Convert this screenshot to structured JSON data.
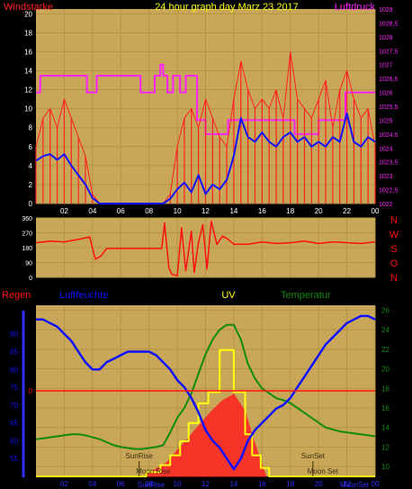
{
  "colors": {
    "panel": "#C8A858",
    "grid": "#B59346",
    "tick": "#FFFFFF",
    "wind": "#FF2020",
    "wind_avg": "#1010FF",
    "pressure": "#FF20FF",
    "direction": "#FF1010",
    "rain": "#FF1010",
    "humidity": "#1010FF",
    "uv": "#FFFF10",
    "temperature": "#108A10",
    "solar_fill": "#FF2020",
    "sun_moon": "#3C2A10",
    "hour_ticks": "#3030FF"
  },
  "chart_data": [
    {
      "type": "line",
      "title": "24 hour graph day   Marz 23 2017",
      "ylabel_left": "Windstarke",
      "ylabel_right": "Luftdruck",
      "x_ticks": [
        "02",
        "04",
        "06",
        "08",
        "10",
        "12",
        "14",
        "16",
        "18",
        "20",
        "22",
        "00"
      ],
      "y_left_ticks": [
        "0",
        "2",
        "4",
        "6",
        "8",
        "10",
        "12",
        "14",
        "16",
        "18",
        "20"
      ],
      "y_right_ticks": [
        "1022",
        "1022,5",
        "1023",
        "1023,5",
        "1024",
        "1024,5",
        "1025",
        "1025,5",
        "1026",
        "1026,5",
        "1027",
        "1027,5",
        "1028",
        "1028,5",
        "1029"
      ],
      "ylim_left": [
        0,
        20.5
      ],
      "ylim_right": [
        1022,
        1029
      ],
      "series": [
        {
          "role": "wind_gust",
          "x": [
            0,
            0.5,
            1,
            1.5,
            2,
            2.5,
            3,
            3.5,
            4,
            4.5,
            5,
            5.5,
            6,
            6.5,
            7,
            7.5,
            8,
            8.5,
            9,
            9.5,
            10,
            10.5,
            11,
            11.5,
            12,
            12.5,
            13,
            13.5,
            14,
            14.5,
            15,
            15.5,
            16,
            16.5,
            17,
            17.5,
            18,
            18.5,
            19,
            19.5,
            20,
            20.5,
            21,
            21.5,
            22,
            22.5,
            23,
            23.5,
            24
          ],
          "values": [
            6,
            9,
            10,
            8,
            11,
            9,
            7,
            5,
            1,
            0,
            0,
            0,
            0,
            0,
            0,
            0,
            0,
            0,
            0,
            1,
            6,
            9,
            10,
            8,
            11,
            9,
            7,
            6,
            11,
            15,
            12,
            10,
            11,
            10,
            12,
            9,
            16,
            11,
            10,
            9,
            11,
            13,
            8,
            12,
            14,
            11,
            9,
            10,
            6
          ]
        },
        {
          "role": "wind_average",
          "x": [
            0,
            0.5,
            1,
            1.5,
            2,
            2.5,
            3,
            3.5,
            4,
            4.5,
            5,
            5.5,
            6,
            6.5,
            7,
            7.5,
            8,
            8.5,
            9,
            9.5,
            10,
            10.5,
            11,
            11.5,
            12,
            12.5,
            13,
            13.5,
            14,
            14.5,
            15,
            15.5,
            16,
            16.5,
            17,
            17.5,
            18,
            18.5,
            19,
            19.5,
            20,
            20.5,
            21,
            21.5,
            22,
            22.5,
            23,
            23.5,
            24
          ],
          "values": [
            4.5,
            5,
            5.2,
            4.6,
            5.2,
            4,
            3,
            2,
            0.6,
            0,
            0,
            0,
            0,
            0,
            0,
            0,
            0,
            0,
            0,
            0.5,
            1.5,
            2.2,
            1.2,
            3,
            1,
            2,
            1.5,
            2.5,
            5,
            9,
            7,
            6.5,
            7.5,
            6.5,
            6,
            7,
            7.5,
            6.5,
            7,
            6,
            6.5,
            6,
            7,
            6.5,
            9.5,
            6.5,
            6,
            7,
            6.5
          ]
        },
        {
          "role": "pressure",
          "x": [
            0,
            0.3,
            0.3,
            3.6,
            3.6,
            4.3,
            4.3,
            7.4,
            7.4,
            8.4,
            8.4,
            8.8,
            8.8,
            9.0,
            9.0,
            9.3,
            9.3,
            9.7,
            9.7,
            10.2,
            10.2,
            10.6,
            10.6,
            11.4,
            11.4,
            12.0,
            12.0,
            13.6,
            13.6,
            14.5,
            14.5,
            16.4,
            16.4,
            18.3,
            18.3,
            20.0,
            20.0,
            21.9,
            21.9,
            24
          ],
          "values": [
            1026.0,
            1026.0,
            1026.6,
            1026.6,
            1026.0,
            1026.0,
            1026.6,
            1026.6,
            1026.0,
            1026.0,
            1026.6,
            1026.6,
            1027.0,
            1027.0,
            1026.6,
            1026.6,
            1026.0,
            1026.0,
            1026.6,
            1026.6,
            1026.0,
            1026.0,
            1026.6,
            1026.6,
            1025.0,
            1025.0,
            1024.5,
            1024.5,
            1025.0,
            1025.0,
            1025.0,
            1025.0,
            1025.0,
            1025.0,
            1024.5,
            1024.5,
            1025.0,
            1025.0,
            1026.0,
            1026.0
          ]
        }
      ]
    },
    {
      "type": "line",
      "ylabel_right_letters": [
        "N",
        "W",
        "S",
        "O",
        "N"
      ],
      "y_left_ticks": [
        "0",
        "90",
        "180",
        "270",
        "360"
      ],
      "ylim": [
        0,
        360
      ],
      "series": [
        {
          "role": "wind_direction",
          "x": [
            0,
            1,
            2,
            3,
            3.8,
            4.2,
            4.6,
            5,
            6,
            7,
            8,
            8.9,
            9.1,
            9.4,
            9.6,
            9.8,
            10,
            10.3,
            10.6,
            11,
            11.2,
            11.5,
            11.8,
            12.1,
            12.4,
            12.8,
            13.2,
            13.6,
            14,
            15,
            16,
            17,
            18,
            19,
            20,
            21,
            22,
            23,
            24
          ],
          "values": [
            210,
            220,
            215,
            230,
            245,
            110,
            130,
            175,
            175,
            175,
            175,
            175,
            330,
            60,
            20,
            15,
            10,
            300,
            40,
            280,
            30,
            210,
            320,
            50,
            340,
            200,
            250,
            230,
            200,
            200,
            215,
            205,
            210,
            220,
            205,
            215,
            210,
            205,
            215
          ]
        }
      ]
    },
    {
      "type": "line",
      "ylabel_left": "Regen",
      "ylabel_center_left": "Luftfeuchte",
      "ylabel_center": "UV",
      "ylabel_right": "Temperatur",
      "x_ticks": [
        "02",
        "04",
        "06",
        "08",
        "10",
        "12",
        "14",
        "16",
        "18",
        "20",
        "22",
        "00"
      ],
      "y_humidity_ticks": [
        "55",
        "60",
        "65",
        "70",
        "75",
        "80",
        "85",
        "90"
      ],
      "y_rain_ticks": [
        "0"
      ],
      "y_temp_ticks": [
        "10",
        "12",
        "14",
        "16",
        "18",
        "20",
        "22",
        "24",
        "26"
      ],
      "ylim_humidity": [
        50,
        98
      ],
      "ylim_temperature": [
        9,
        26.5
      ],
      "annotations": {
        "sunrise": "SunRise",
        "sunset": "SunSet",
        "moonrise": "Moon Rise",
        "moonset": "Moon Set",
        "sunrise_axis_label": "SunRise",
        "moonset_axis_label": "MoonSet",
        "sunrise_hour": 7.3,
        "sunset_hour": 19.6,
        "moonrise_hour": 8.3,
        "moonset_hour": 20.3
      },
      "series": [
        {
          "role": "humidity",
          "x": [
            0,
            0.5,
            1,
            1.5,
            2,
            2.5,
            3,
            3.5,
            4,
            4.5,
            5,
            5.5,
            6,
            6.5,
            7,
            7.5,
            8,
            8.5,
            9,
            9.5,
            10,
            10.5,
            11,
            11.5,
            12,
            12.5,
            13,
            13.5,
            14,
            14.5,
            15,
            15.5,
            16,
            16.5,
            17,
            17.5,
            18,
            18.5,
            19,
            19.5,
            20,
            20.5,
            21,
            21.5,
            22,
            22.5,
            23,
            23.5,
            24
          ],
          "values": [
            94,
            94,
            93,
            92,
            90,
            88,
            85,
            82,
            80,
            80,
            82,
            83,
            84,
            85,
            85,
            85,
            85,
            84,
            82,
            80,
            77,
            75,
            72,
            68,
            63,
            60,
            58,
            55,
            52,
            55,
            60,
            63,
            65,
            67,
            69,
            70,
            72,
            75,
            78,
            81,
            84,
            87,
            89,
            91,
            93,
            94,
            95,
            95,
            94
          ]
        },
        {
          "role": "temperature",
          "x": [
            0,
            0.5,
            1,
            1.5,
            2,
            2.5,
            3,
            3.5,
            4,
            4.5,
            5,
            5.5,
            6,
            6.5,
            7,
            7.5,
            8,
            8.5,
            9,
            9.5,
            10,
            10.5,
            11,
            11.5,
            12,
            12.5,
            13,
            13.5,
            14,
            14.5,
            15,
            15.5,
            16,
            16.5,
            17,
            17.5,
            18,
            18.5,
            19,
            19.5,
            20,
            20.5,
            21,
            21.5,
            22,
            22.5,
            23,
            23.5,
            24
          ],
          "values": [
            12.8,
            12.9,
            13.0,
            13.1,
            13.2,
            13.3,
            13.3,
            13.2,
            13.0,
            12.8,
            12.5,
            12.2,
            12.0,
            11.9,
            11.8,
            11.8,
            11.9,
            12.0,
            12.2,
            13.5,
            15.0,
            16.0,
            17.5,
            19.5,
            21.5,
            23.0,
            24.0,
            24.5,
            24.5,
            23.0,
            20.5,
            19.0,
            18.0,
            17.5,
            17.0,
            16.8,
            16.5,
            16.0,
            15.5,
            15.0,
            14.5,
            14.0,
            13.8,
            13.6,
            13.5,
            13.4,
            13.3,
            13.2,
            13.1
          ]
        },
        {
          "role": "uv",
          "x": [
            0,
            7.8,
            7.8,
            8.8,
            8.8,
            9.5,
            9.5,
            10.2,
            10.2,
            10.8,
            10.8,
            11.5,
            11.5,
            12.2,
            12.2,
            13.0,
            13.0,
            14.0,
            14.0,
            14.8,
            14.8,
            15.3,
            15.3,
            15.9,
            15.9,
            16.5,
            16.5,
            24
          ],
          "values": [
            0,
            0,
            0.3,
            0.3,
            0.8,
            0.8,
            1.5,
            1.5,
            2.5,
            2.5,
            3.8,
            3.8,
            5.2,
            5.2,
            6.0,
            6.0,
            9.0,
            9.0,
            6.0,
            6.0,
            3.0,
            3.0,
            1.5,
            1.5,
            0.6,
            0.6,
            0,
            0
          ]
        },
        {
          "role": "solar_radiation",
          "x": [
            7.6,
            8.4,
            9.2,
            10,
            10.8,
            11.6,
            12.4,
            13.2,
            14,
            14.8,
            15.2,
            15.6,
            16,
            16.3
          ],
          "values": [
            0,
            0.6,
            1.2,
            2.4,
            3.6,
            4.8,
            6.0,
            7.0,
            7.6,
            6.0,
            4.2,
            2.6,
            1.0,
            0
          ]
        }
      ]
    }
  ]
}
